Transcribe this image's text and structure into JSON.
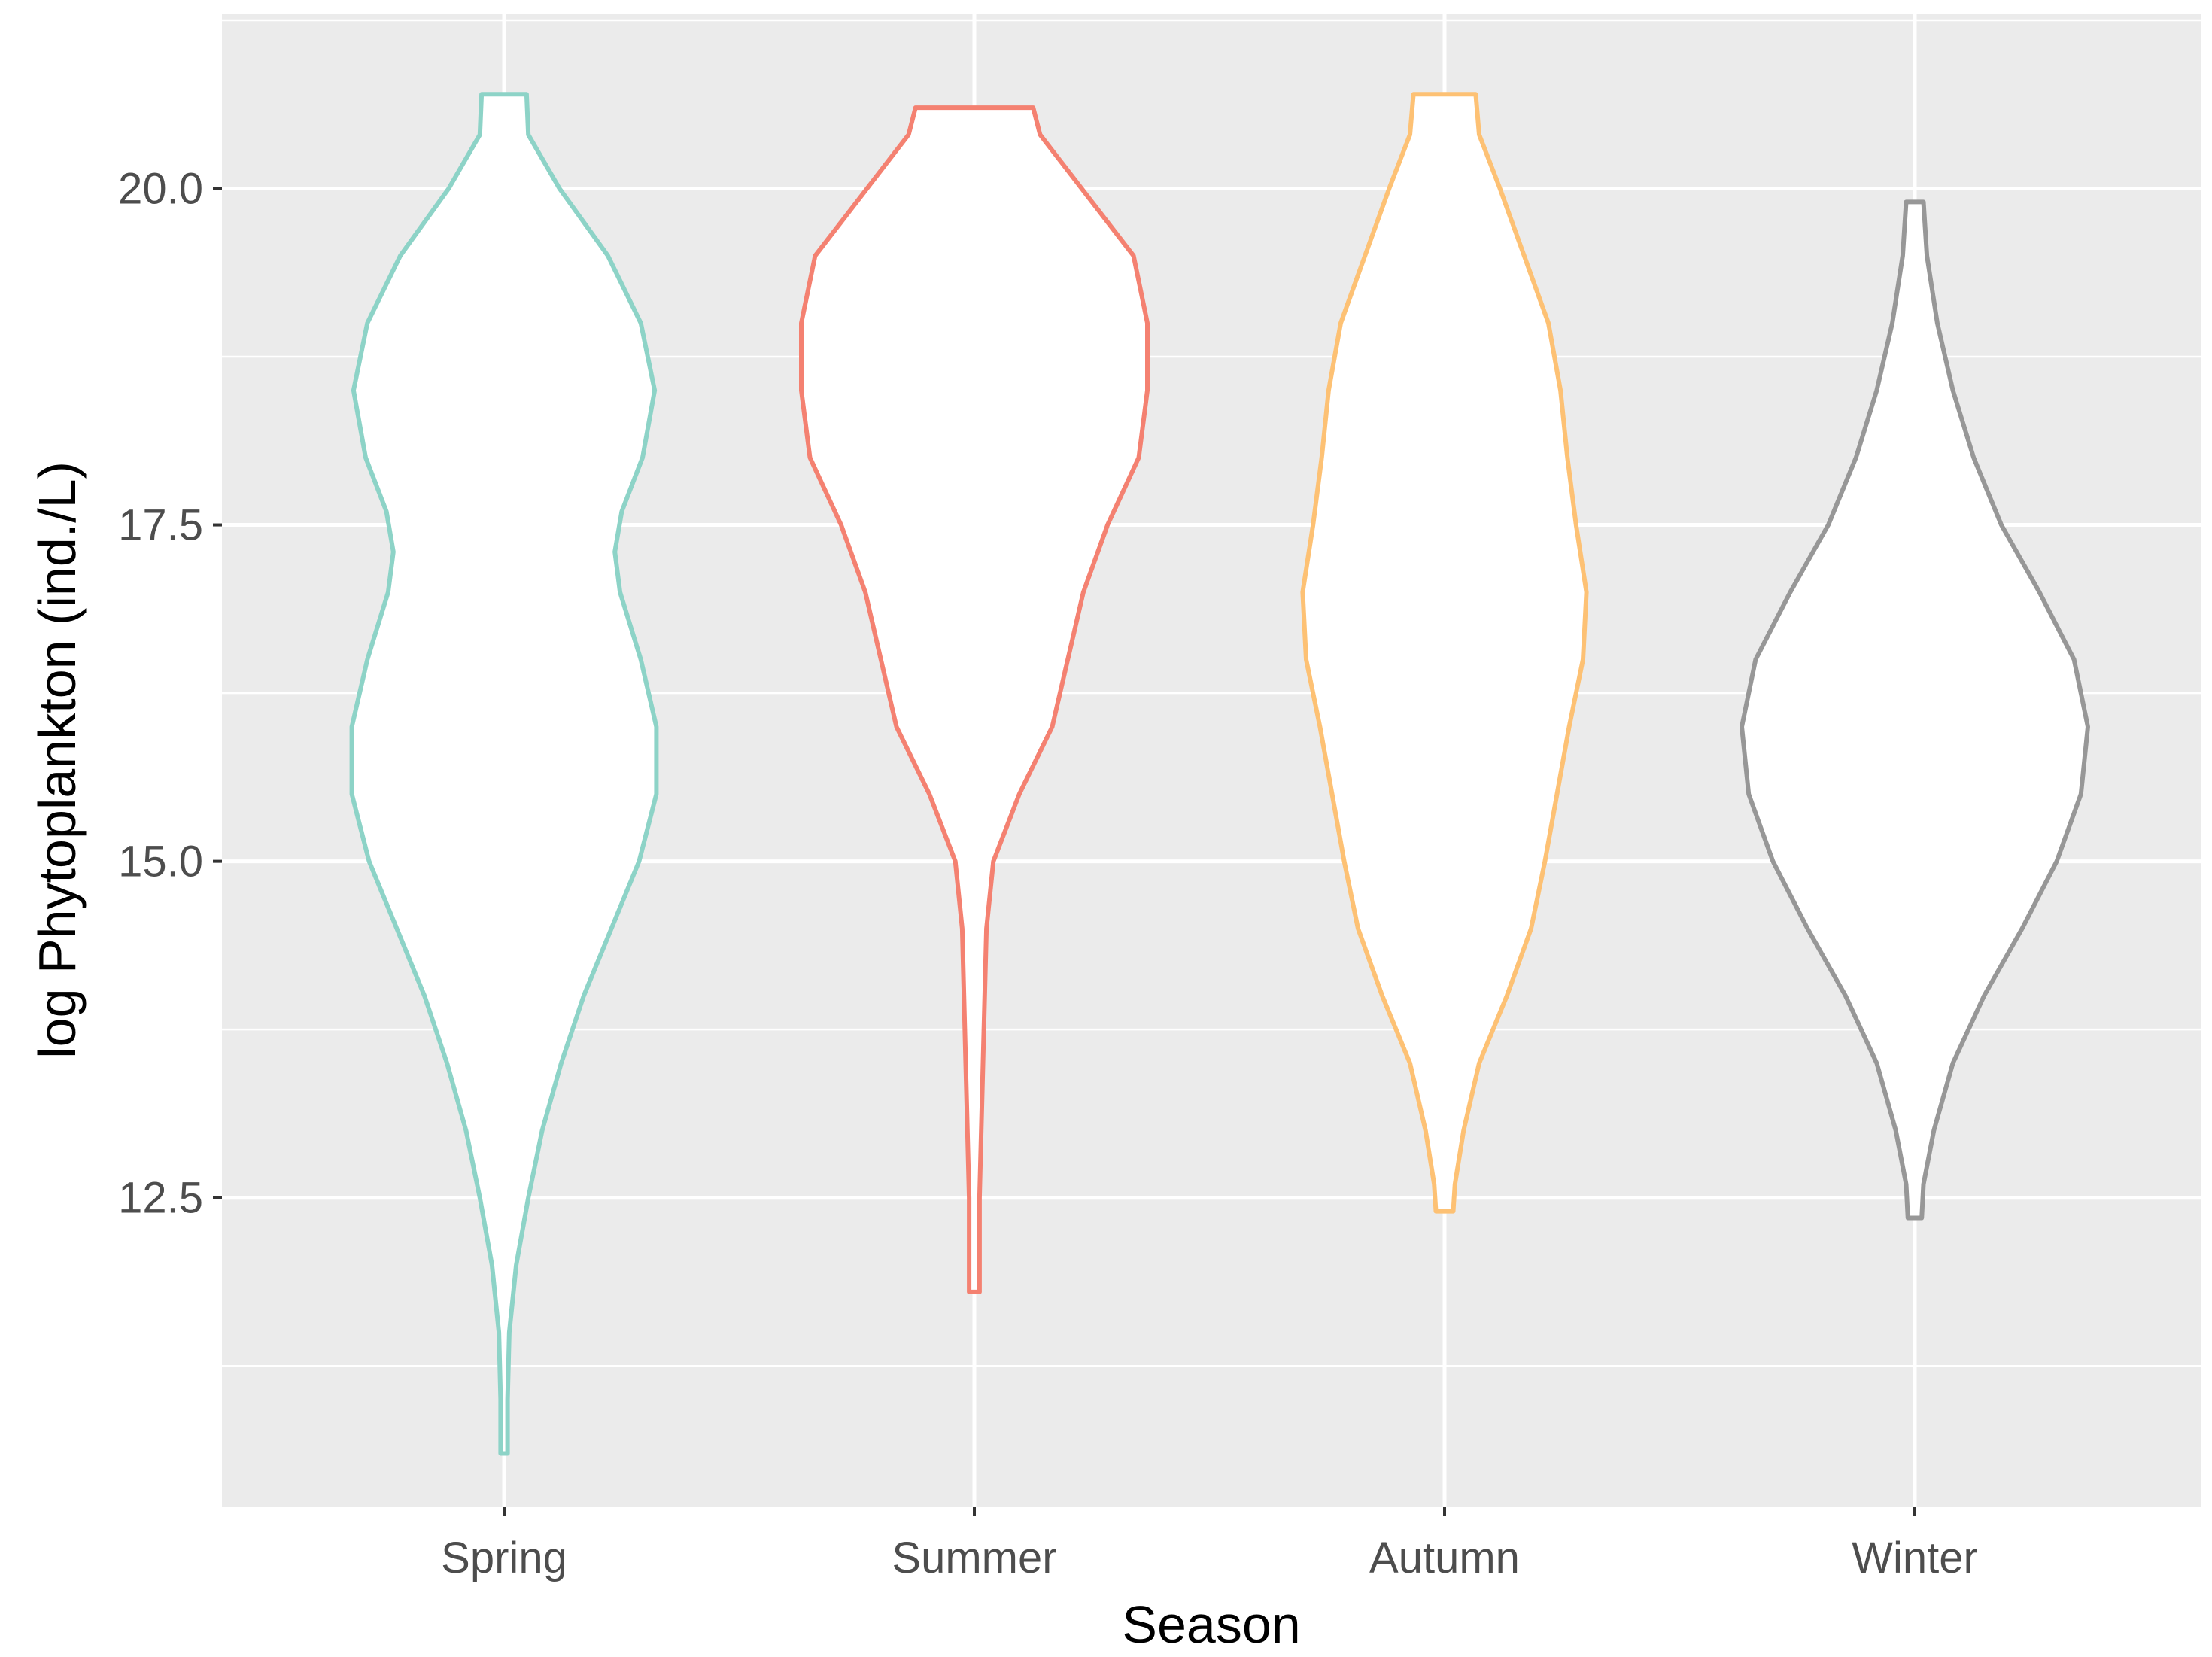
{
  "chart_data": {
    "type": "violin",
    "xlabel": "Season",
    "ylabel": "log Phytoplankton (ind./L)",
    "categories": [
      "Spring",
      "Summer",
      "Autumn",
      "Winter"
    ],
    "ylim": [
      10.2,
      21.3
    ],
    "yticks": [
      12.5,
      15.0,
      17.5,
      20.0
    ],
    "ytick_labels": [
      "12.5",
      "15.0",
      "17.5",
      "20.0"
    ],
    "grid": true,
    "legend": "none",
    "series": [
      {
        "category": "Spring",
        "color": "#8dd3c7",
        "fill": "#ffffff",
        "min": 10.6,
        "max": 20.7,
        "profile": [
          [
            10.6,
            0.02
          ],
          [
            11.0,
            0.02
          ],
          [
            11.5,
            0.03
          ],
          [
            12.0,
            0.07
          ],
          [
            12.5,
            0.14
          ],
          [
            13.0,
            0.22
          ],
          [
            13.5,
            0.33
          ],
          [
            14.0,
            0.46
          ],
          [
            14.5,
            0.62
          ],
          [
            15.0,
            0.78
          ],
          [
            15.5,
            0.88
          ],
          [
            16.0,
            0.88
          ],
          [
            16.5,
            0.79
          ],
          [
            17.0,
            0.67
          ],
          [
            17.3,
            0.64
          ],
          [
            17.6,
            0.68
          ],
          [
            18.0,
            0.8
          ],
          [
            18.5,
            0.87
          ],
          [
            19.0,
            0.79
          ],
          [
            19.5,
            0.6
          ],
          [
            20.0,
            0.32
          ],
          [
            20.4,
            0.14
          ],
          [
            20.7,
            0.13
          ]
        ]
      },
      {
        "category": "Summer",
        "color": "#f48171",
        "fill": "#ffffff",
        "min": 11.8,
        "max": 20.6,
        "profile": [
          [
            11.8,
            0.03
          ],
          [
            12.5,
            0.03
          ],
          [
            13.0,
            0.04
          ],
          [
            13.5,
            0.05
          ],
          [
            14.0,
            0.06
          ],
          [
            14.5,
            0.07
          ],
          [
            15.0,
            0.11
          ],
          [
            15.5,
            0.26
          ],
          [
            16.0,
            0.45
          ],
          [
            16.5,
            0.54
          ],
          [
            17.0,
            0.63
          ],
          [
            17.5,
            0.77
          ],
          [
            18.0,
            0.95
          ],
          [
            18.5,
            1.0
          ],
          [
            19.0,
            1.0
          ],
          [
            19.5,
            0.92
          ],
          [
            20.0,
            0.62
          ],
          [
            20.4,
            0.38
          ],
          [
            20.6,
            0.34
          ]
        ]
      },
      {
        "category": "Autumn",
        "color": "#fdc174",
        "fill": "#ffffff",
        "min": 12.4,
        "max": 20.7,
        "profile": [
          [
            12.4,
            0.05
          ],
          [
            12.6,
            0.06
          ],
          [
            13.0,
            0.11
          ],
          [
            13.5,
            0.2
          ],
          [
            14.0,
            0.36
          ],
          [
            14.5,
            0.5
          ],
          [
            15.0,
            0.58
          ],
          [
            15.5,
            0.65
          ],
          [
            16.0,
            0.72
          ],
          [
            16.5,
            0.8
          ],
          [
            17.0,
            0.82
          ],
          [
            17.5,
            0.76
          ],
          [
            18.0,
            0.71
          ],
          [
            18.5,
            0.67
          ],
          [
            19.0,
            0.6
          ],
          [
            19.5,
            0.46
          ],
          [
            20.0,
            0.32
          ],
          [
            20.4,
            0.2
          ],
          [
            20.7,
            0.18
          ]
        ]
      },
      {
        "category": "Winter",
        "color": "#979797",
        "fill": "#ffffff",
        "min": 12.35,
        "max": 19.9,
        "profile": [
          [
            12.35,
            0.04
          ],
          [
            12.6,
            0.05
          ],
          [
            13.0,
            0.11
          ],
          [
            13.5,
            0.22
          ],
          [
            14.0,
            0.4
          ],
          [
            14.5,
            0.62
          ],
          [
            15.0,
            0.82
          ],
          [
            15.5,
            0.96
          ],
          [
            16.0,
            1.0
          ],
          [
            16.5,
            0.92
          ],
          [
            17.0,
            0.72
          ],
          [
            17.5,
            0.5
          ],
          [
            18.0,
            0.34
          ],
          [
            18.5,
            0.22
          ],
          [
            19.0,
            0.13
          ],
          [
            19.5,
            0.07
          ],
          [
            19.9,
            0.05
          ]
        ]
      }
    ]
  }
}
